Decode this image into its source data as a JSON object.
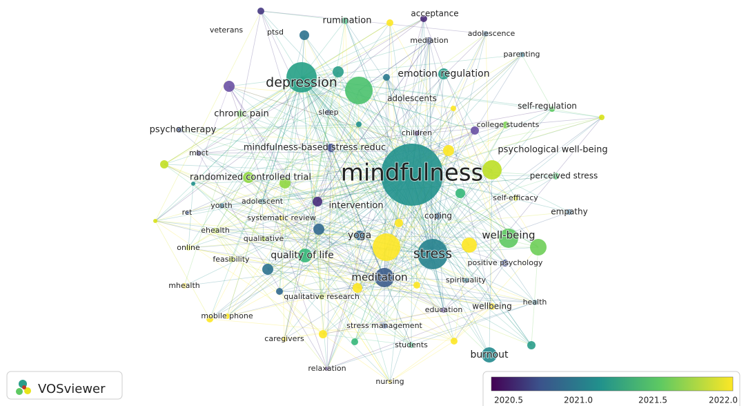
{
  "nodes": [
    {
      "label": "mindfulness",
      "color": "#21918c"
    },
    {
      "label": "depression",
      "color": "#25a085"
    },
    {
      "label": "stress",
      "color": "#26828e"
    },
    {
      "label": "meditation",
      "color": "#3b5c8c"
    },
    {
      "label": "well-being",
      "color": "#5ec962"
    },
    {
      "label": "emotion regulation",
      "color": "#2a9d8a"
    },
    {
      "label": "quality of life",
      "color": "#35b779"
    },
    {
      "label": "mindfulness-based stress reduc",
      "color": "#3e4a89"
    },
    {
      "label": "randomized controlled trial",
      "color": "#90d743"
    },
    {
      "label": "intervention",
      "color": "#472d7b"
    },
    {
      "label": "yoga",
      "color": "#31688e"
    },
    {
      "label": "burnout",
      "color": "#23898e"
    },
    {
      "label": "acceptance",
      "color": "#482878"
    },
    {
      "label": "rumination",
      "color": "#35b779"
    },
    {
      "label": "veterans",
      "color": "#453781"
    },
    {
      "label": "ptsd",
      "color": "#2c728e"
    },
    {
      "label": "mediation",
      "color": "#3e4a89"
    },
    {
      "label": "adolescence",
      "color": "#31688e"
    },
    {
      "label": "parenting",
      "color": "#2a788e"
    },
    {
      "label": "adolescents",
      "color": "#4ac16d"
    },
    {
      "label": "self-regulation",
      "color": "#5ec962"
    },
    {
      "label": "sleep",
      "color": "#3b528b"
    },
    {
      "label": "chronic pain",
      "color": "#6ece58"
    },
    {
      "label": "psychotherapy",
      "color": "#3b528b"
    },
    {
      "label": "children",
      "color": "#482475"
    },
    {
      "label": "college students",
      "color": "#7ad151"
    },
    {
      "label": "psychological well-being",
      "color": "#bddf26"
    },
    {
      "label": "mbct",
      "color": "#443983"
    },
    {
      "label": "perceived stress",
      "color": "#4ac16d"
    },
    {
      "label": "self-efficacy",
      "color": "#d8e219"
    },
    {
      "label": "empathy",
      "color": "#31688e"
    },
    {
      "label": "youth",
      "color": "#2c728e"
    },
    {
      "label": "adolescent",
      "color": "#26828e"
    },
    {
      "label": "rct",
      "color": "#3b528b"
    },
    {
      "label": "systematic review",
      "color": "#fde725"
    },
    {
      "label": "ehealth",
      "color": "#b5de2b"
    },
    {
      "label": "coping",
      "color": "#35608d"
    },
    {
      "label": "qualitative",
      "color": "#addc30"
    },
    {
      "label": "online",
      "color": "#d0e11c"
    },
    {
      "label": "feasibility",
      "color": "#c2df23"
    },
    {
      "label": "positive psychology",
      "color": "#3e4a89"
    },
    {
      "label": "spirituality",
      "color": "#2a788e"
    },
    {
      "label": "mhealth",
      "color": "#fde725"
    },
    {
      "label": "qualitative research",
      "color": "#bddf26"
    },
    {
      "label": "education",
      "color": "#46327e"
    },
    {
      "label": "wellbeing",
      "color": "#fde725"
    },
    {
      "label": "health",
      "color": "#2a788e"
    },
    {
      "label": "mobile phone",
      "color": "#fde725"
    },
    {
      "label": "stress management",
      "color": "#38588c"
    },
    {
      "label": "caregivers",
      "color": "#fde725"
    },
    {
      "label": "students",
      "color": "#35b779"
    },
    {
      "label": "relaxation",
      "color": "#482878"
    },
    {
      "label": "nursing",
      "color": "#fde725"
    }
  ],
  "colorbar": {
    "ticks": [
      "2020.5",
      "2021.0",
      "2021.5",
      "2022.0"
    ]
  },
  "logo": "VOSviewer"
}
